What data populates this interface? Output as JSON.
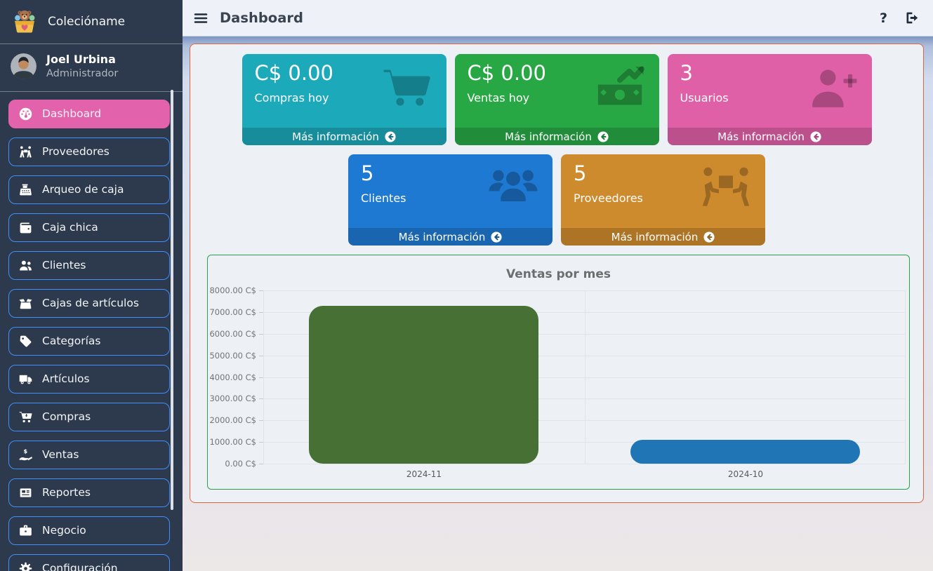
{
  "brand": {
    "title": "Colecióname",
    "icon": "teddy-bear-box-icon"
  },
  "user": {
    "name": "Joel Urbina",
    "role": "Administrador"
  },
  "sidebar": {
    "background": "#2d3a4d",
    "item_border_color": "#3f8efc",
    "active_color": "#e263ab",
    "items": [
      {
        "label": "Dashboard",
        "icon": "gauge-icon",
        "active": true
      },
      {
        "label": "Proveedores",
        "icon": "suppliers-icon",
        "active": false
      },
      {
        "label": "Arqueo de caja",
        "icon": "cash-register-icon",
        "active": false
      },
      {
        "label": "Caja chica",
        "icon": "wallet-icon",
        "active": false
      },
      {
        "label": "Clientes",
        "icon": "users-icon",
        "active": false
      },
      {
        "label": "Cajas de artículos",
        "icon": "box-open-icon",
        "active": false
      },
      {
        "label": "Categorías",
        "icon": "tag-icon",
        "active": false
      },
      {
        "label": "Artículos",
        "icon": "truck-icon",
        "active": false
      },
      {
        "label": "Compras",
        "icon": "cart-arrow-down-icon",
        "active": false
      },
      {
        "label": "Ventas",
        "icon": "hand-holding-dollar-icon",
        "active": false
      },
      {
        "label": "Reportes",
        "icon": "newspaper-icon",
        "active": false
      },
      {
        "label": "Negocio",
        "icon": "briefcase-icon",
        "active": false
      },
      {
        "label": "Configuración",
        "icon": "gear-icon",
        "active": false
      }
    ]
  },
  "navbar": {
    "title": "Dashboard",
    "help_label": "?"
  },
  "info_boxes": [
    {
      "value": "C$ 0.00",
      "label": "Compras hoy",
      "footer_label": "Más información",
      "icon": "shopping-cart-icon",
      "color": "#1ca9ba"
    },
    {
      "value": "C$ 0.00",
      "label": "Ventas hoy",
      "footer_label": "Más información",
      "icon": "money-trend-up-icon",
      "color": "#28a745"
    },
    {
      "value": "3",
      "label": "Usuarios",
      "footer_label": "Más información",
      "icon": "user-plus-icon",
      "color": "#e060a8"
    },
    {
      "value": "5",
      "label": "Clientes",
      "footer_label": "Más información",
      "icon": "users-group-icon",
      "color": "#1e79d2"
    },
    {
      "value": "5",
      "label": "Proveedores",
      "footer_label": "Más información",
      "icon": "people-carry-box-icon",
      "color": "#ce8b2e"
    }
  ],
  "chart_data": {
    "type": "bar",
    "title": "Ventas por mes",
    "categories": [
      "2024-11",
      "2024-10"
    ],
    "values": [
      7300,
      1100
    ],
    "bar_colors": [
      "#477134",
      "#2076b4"
    ],
    "ylim": [
      0,
      8000
    ],
    "tick_step": 1000,
    "tick_labels": [
      "8000.00 C$",
      "7000.00 C$",
      "6000.00 C$",
      "5000.00 C$",
      "4000.00 C$",
      "3000.00 C$",
      "2000.00 C$",
      "1000.00 C$",
      "0.00 C$"
    ],
    "xlabel": "",
    "ylabel": "",
    "grid": true,
    "legend": false
  }
}
